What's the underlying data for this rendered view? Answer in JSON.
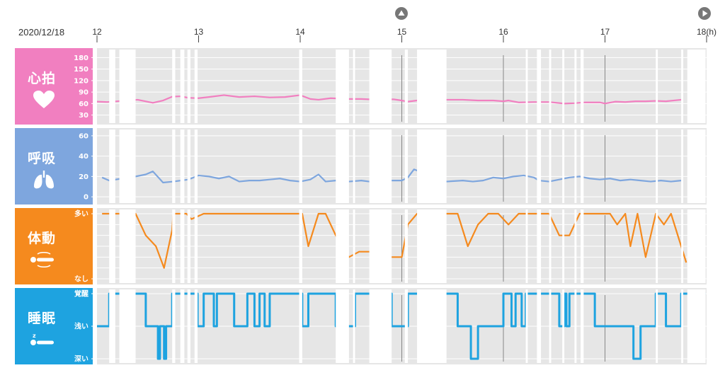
{
  "header": {
    "date": "2020/12/18",
    "hour_ticks": [
      "12",
      "13",
      "14",
      "15",
      "16",
      "17",
      "18(h)"
    ]
  },
  "nav": {
    "up_icon": "triangle-up-circle-icon",
    "play_icon": "play-circle-icon"
  },
  "colors": {
    "heart": "#f17fc0",
    "resp": "#7ea6de",
    "motion": "#f58a1e",
    "sleep": "#1ea3e0",
    "plot_bg": "#e6e6e6",
    "gap": "#ffffff"
  },
  "panels": {
    "heart": {
      "title": "心拍",
      "icon": "heart-icon"
    },
    "resp": {
      "title": "呼吸",
      "icon": "lungs-icon"
    },
    "motion": {
      "title": "体動",
      "icon": "person-lying-motion-icon"
    },
    "sleep": {
      "title": "睡眠",
      "icon": "person-sleeping-icon"
    }
  },
  "chart_data": [
    {
      "type": "line",
      "name": "heart",
      "title": "心拍",
      "x_unit": "hour",
      "xlim": [
        12,
        18
      ],
      "ylim": [
        20,
        190
      ],
      "yticks": [
        "180",
        "150",
        "120",
        "90",
        "60",
        "30"
      ],
      "ytick_values": [
        180,
        150,
        120,
        90,
        60,
        30
      ],
      "gaps": [
        [
          12.12,
          12.18
        ],
        [
          12.22,
          12.38
        ],
        [
          12.74,
          12.77
        ],
        [
          12.82,
          12.86
        ],
        [
          12.89,
          12.92
        ],
        [
          12.96,
          12.99
        ],
        [
          13.99,
          14.02
        ],
        [
          14.35,
          14.48
        ],
        [
          14.52,
          14.54
        ],
        [
          14.68,
          14.9
        ],
        [
          15.03,
          15.06
        ],
        [
          15.15,
          15.44
        ],
        [
          16.22,
          16.24
        ],
        [
          16.33,
          16.37
        ],
        [
          16.45,
          16.47
        ],
        [
          16.58,
          16.6
        ],
        [
          16.7,
          16.72
        ],
        [
          16.76,
          16.79
        ],
        [
          17.5,
          17.52
        ],
        [
          17.75,
          17.77
        ],
        [
          17.81,
          17.99
        ]
      ],
      "x": [
        12.0,
        12.1,
        12.4,
        12.55,
        12.65,
        12.74,
        12.82,
        12.9,
        13.0,
        13.1,
        13.25,
        13.4,
        13.55,
        13.7,
        13.85,
        14.0,
        14.1,
        14.18,
        14.3,
        14.48,
        14.6,
        14.68,
        14.92,
        15.0,
        15.06,
        15.15,
        15.44,
        15.6,
        15.75,
        15.9,
        16.0,
        16.05,
        16.15,
        16.3,
        16.45,
        16.6,
        16.7,
        16.8,
        16.95,
        17.0,
        17.1,
        17.2,
        17.3,
        17.4,
        17.5,
        17.6,
        17.75
      ],
      "y": [
        65,
        64,
        70,
        62,
        68,
        78,
        79,
        75,
        74,
        77,
        82,
        77,
        79,
        76,
        77,
        82,
        72,
        70,
        74,
        72,
        72,
        71,
        71,
        68,
        65,
        68,
        70,
        70,
        68,
        68,
        66,
        68,
        63,
        64,
        64,
        60,
        61,
        63,
        63,
        60,
        65,
        64,
        66,
        66,
        67,
        66,
        70
      ]
    },
    {
      "type": "line",
      "name": "resp",
      "title": "呼吸",
      "x_unit": "hour",
      "xlim": [
        12,
        18
      ],
      "ylim": [
        -2,
        62
      ],
      "yticks": [
        "60",
        "40",
        "20",
        "0"
      ],
      "ytick_values": [
        60,
        40,
        20,
        0
      ],
      "gaps": [
        [
          12.12,
          12.18
        ],
        [
          12.22,
          12.38
        ],
        [
          12.74,
          12.77
        ],
        [
          12.82,
          12.86
        ],
        [
          12.89,
          12.92
        ],
        [
          12.96,
          12.99
        ],
        [
          13.99,
          14.02
        ],
        [
          14.35,
          14.48
        ],
        [
          14.52,
          14.54
        ],
        [
          14.68,
          14.9
        ],
        [
          15.03,
          15.06
        ],
        [
          15.15,
          15.44
        ],
        [
          16.22,
          16.24
        ],
        [
          16.33,
          16.37
        ],
        [
          16.45,
          16.47
        ],
        [
          16.58,
          16.6
        ],
        [
          16.7,
          16.72
        ],
        [
          16.76,
          16.79
        ],
        [
          17.5,
          17.52
        ],
        [
          17.75,
          17.77
        ],
        [
          17.81,
          17.99
        ]
      ],
      "x": [
        12.05,
        12.12,
        12.38,
        12.48,
        12.55,
        12.65,
        12.75,
        12.9,
        13.0,
        13.1,
        13.2,
        13.3,
        13.4,
        13.5,
        13.6,
        13.7,
        13.8,
        13.9,
        14.0,
        14.1,
        14.18,
        14.25,
        14.35,
        14.48,
        14.6,
        14.68,
        14.9,
        15.0,
        15.06,
        15.12,
        15.44,
        15.6,
        15.7,
        15.8,
        15.9,
        16.0,
        16.1,
        16.2,
        16.3,
        16.35,
        16.45,
        16.55,
        16.65,
        16.75,
        16.85,
        16.95,
        17.05,
        17.15,
        17.25,
        17.35,
        17.45,
        17.55,
        17.65,
        17.75
      ],
      "y": [
        19,
        16,
        20,
        22,
        25,
        14,
        15,
        17,
        21,
        20,
        18,
        20,
        15,
        16,
        16,
        17,
        18,
        16,
        15,
        17,
        22,
        15,
        16,
        15,
        16,
        15,
        16,
        16,
        19,
        27,
        15,
        16,
        15,
        16,
        19,
        18,
        20,
        21,
        19,
        16,
        15,
        17,
        19,
        20,
        18,
        17,
        18,
        16,
        17,
        16,
        15,
        16,
        15,
        16
      ]
    },
    {
      "type": "line",
      "name": "motion",
      "title": "体動",
      "x_unit": "hour",
      "xlim": [
        12,
        18
      ],
      "ylim": [
        0,
        6
      ],
      "yticks": [
        "多い",
        "なし"
      ],
      "ytick_values": [
        6,
        0
      ],
      "gaps": [
        [
          12.12,
          12.18
        ],
        [
          12.22,
          12.38
        ],
        [
          12.74,
          12.77
        ],
        [
          12.82,
          12.86
        ],
        [
          12.89,
          12.92
        ],
        [
          12.96,
          12.99
        ],
        [
          13.99,
          14.02
        ],
        [
          14.35,
          14.48
        ],
        [
          14.52,
          14.54
        ],
        [
          14.68,
          14.9
        ],
        [
          15.03,
          15.06
        ],
        [
          15.15,
          15.44
        ],
        [
          16.22,
          16.24
        ],
        [
          16.33,
          16.37
        ],
        [
          16.45,
          16.47
        ],
        [
          16.58,
          16.6
        ],
        [
          16.7,
          16.72
        ],
        [
          16.76,
          16.79
        ],
        [
          17.5,
          17.52
        ],
        [
          17.75,
          17.77
        ],
        [
          17.81,
          17.99
        ]
      ],
      "x": [
        12.05,
        12.12,
        12.38,
        12.48,
        12.58,
        12.66,
        12.74,
        12.75,
        12.82,
        12.88,
        12.93,
        13.05,
        13.15,
        13.35,
        13.6,
        13.85,
        14.02,
        14.08,
        14.18,
        14.25,
        14.35,
        14.48,
        14.58,
        14.68,
        14.9,
        15.0,
        15.06,
        15.15,
        15.44,
        15.55,
        15.65,
        15.75,
        15.85,
        15.95,
        16.05,
        16.15,
        16.25,
        16.35,
        16.45,
        16.55,
        16.65,
        16.75,
        16.85,
        16.95,
        17.05,
        17.12,
        17.2,
        17.25,
        17.32,
        17.4,
        17.5,
        17.58,
        17.65,
        17.75,
        17.8
      ],
      "y": [
        6,
        6,
        6,
        4,
        3,
        1,
        4.5,
        6,
        6,
        6,
        5.5,
        6,
        6,
        6,
        6,
        6,
        6,
        3,
        6,
        6,
        4,
        2,
        2.5,
        2.5,
        2,
        2,
        5,
        6,
        6,
        6,
        3,
        5,
        6,
        6,
        5,
        6,
        6,
        6,
        6,
        4,
        4,
        6,
        6,
        6,
        6,
        5,
        6,
        3,
        6,
        2,
        6,
        5,
        6,
        3,
        1.5
      ]
    },
    {
      "type": "line",
      "name": "sleep",
      "title": "睡眠",
      "x_unit": "hour",
      "xlim": [
        12,
        18
      ],
      "ylim": [
        0,
        2
      ],
      "yticks": [
        "覚醒",
        "浅い",
        "深い"
      ],
      "ytick_values": [
        2,
        1,
        0
      ],
      "step": true,
      "gaps": [
        [
          12.12,
          12.18
        ],
        [
          12.22,
          12.38
        ],
        [
          12.74,
          12.77
        ],
        [
          12.82,
          12.86
        ],
        [
          12.89,
          12.92
        ],
        [
          12.96,
          12.99
        ],
        [
          13.99,
          14.02
        ],
        [
          14.35,
          14.48
        ],
        [
          14.52,
          14.54
        ],
        [
          14.68,
          14.9
        ],
        [
          15.03,
          15.06
        ],
        [
          15.15,
          15.44
        ],
        [
          16.22,
          16.24
        ],
        [
          16.33,
          16.37
        ],
        [
          16.45,
          16.47
        ],
        [
          16.58,
          16.6
        ],
        [
          16.7,
          16.72
        ],
        [
          16.76,
          16.79
        ],
        [
          17.5,
          17.52
        ],
        [
          17.75,
          17.77
        ],
        [
          17.81,
          17.99
        ]
      ],
      "x": [
        12.0,
        12.12,
        12.38,
        12.48,
        12.58,
        12.6,
        12.62,
        12.66,
        12.68,
        12.74,
        12.82,
        12.86,
        12.92,
        12.99,
        13.05,
        13.1,
        13.15,
        13.18,
        13.25,
        13.35,
        13.4,
        13.48,
        13.55,
        13.6,
        13.65,
        13.7,
        13.8,
        14.02,
        14.08,
        14.15,
        14.2,
        14.28,
        14.35,
        14.48,
        14.54,
        14.68,
        14.9,
        15.0,
        15.06,
        15.15,
        15.44,
        15.55,
        15.62,
        15.68,
        15.75,
        15.85,
        16.0,
        16.05,
        16.08,
        16.12,
        16.18,
        16.22,
        16.24,
        16.33,
        16.37,
        16.45,
        16.47,
        16.55,
        16.58,
        16.6,
        16.62,
        16.65,
        16.7,
        16.72,
        16.8,
        16.85,
        16.9,
        17.0,
        17.1,
        17.2,
        17.28,
        17.35,
        17.4,
        17.45,
        17.5,
        17.52,
        17.6,
        17.75,
        17.82,
        17.99
      ],
      "y": [
        1,
        2,
        2,
        1,
        1,
        0,
        1,
        0,
        1,
        2,
        2,
        2,
        2,
        1,
        2,
        2,
        1,
        2,
        2,
        1,
        1,
        2,
        1,
        2,
        1,
        2,
        2,
        1,
        2,
        2,
        2,
        2,
        1,
        1,
        2,
        2,
        1,
        1,
        2,
        2,
        2,
        1,
        1,
        0,
        1,
        1,
        2,
        2,
        1,
        2,
        1,
        2,
        2,
        2,
        2,
        2,
        2,
        1,
        1,
        2,
        1,
        2,
        2,
        2,
        2,
        2,
        1,
        1,
        1,
        1,
        0,
        1,
        1,
        1,
        2,
        2,
        1,
        2,
        2,
        2
      ]
    }
  ]
}
